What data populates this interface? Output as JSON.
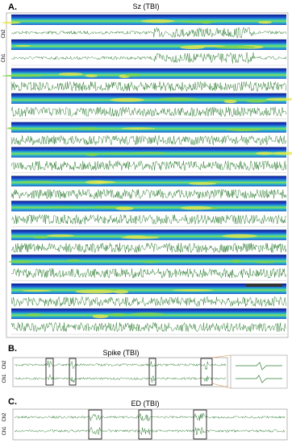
{
  "panel_a": {
    "label": "A.",
    "title": "Sz (TBI)",
    "channels": [
      "Ch2",
      "Ch1"
    ]
  },
  "panel_b": {
    "label": "B.",
    "title": "Spike (TBI)",
    "channels": [
      "Ch2",
      "Ch1"
    ]
  },
  "panel_c": {
    "label": "C.",
    "title": "ED (TBI)",
    "channels": [
      "Ch2",
      "Ch1"
    ]
  }
}
